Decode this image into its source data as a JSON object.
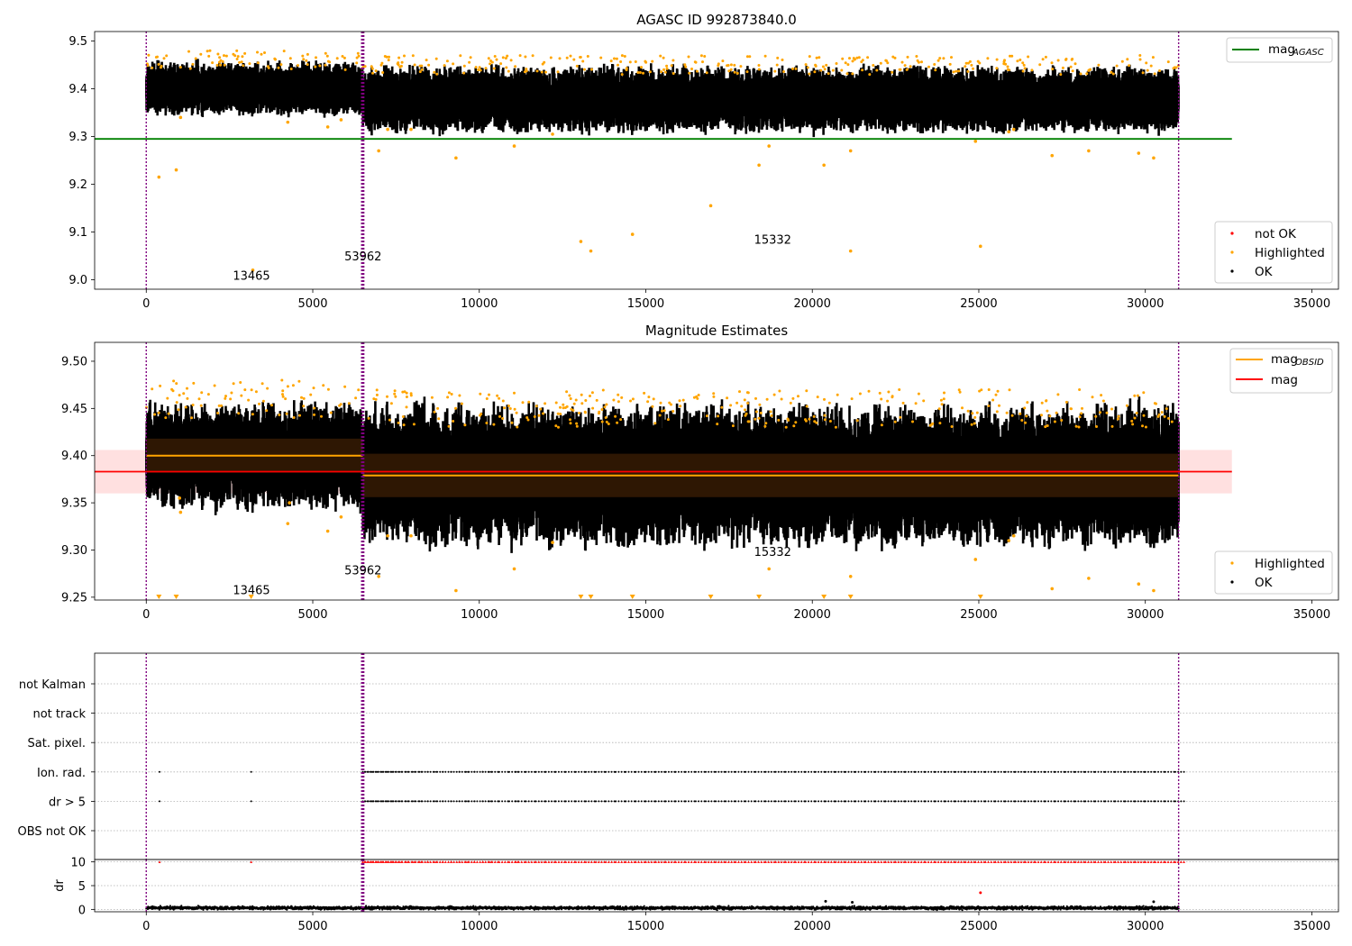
{
  "chart_data": [
    {
      "type": "scatter",
      "title": "AGASC ID 992873840.0",
      "xlim": [
        -1550,
        35800
      ],
      "ylim": [
        8.98,
        9.52
      ],
      "xticks": [
        0,
        5000,
        10000,
        15000,
        20000,
        25000,
        30000,
        35000
      ],
      "yticks": [
        9.0,
        9.1,
        9.2,
        9.3,
        9.4,
        9.5
      ],
      "ytick_labels": [
        "9.0",
        "9.1",
        "9.2",
        "9.3",
        "9.4",
        "9.5"
      ],
      "hlines": [
        {
          "name": "mag_AGASC",
          "y": 9.295,
          "x_range": [
            -1550,
            32600
          ],
          "color": "#008000"
        }
      ],
      "vlines": [
        0,
        6500,
        31000
      ],
      "obsid_blocks": [
        {
          "x_start": 0,
          "x_end": 6500,
          "center": 9.4,
          "spread": 0.012,
          "label": "13465",
          "label_x": 2600,
          "label_y": 9.0
        },
        {
          "x_start": 6500,
          "x_end": 31000,
          "center": 9.377,
          "spread": 0.015,
          "label": "53962",
          "label_x": 5950,
          "label_y": 9.04
        },
        {
          "label": "15332",
          "label_x": 18250,
          "label_y": 9.075
        }
      ],
      "highlighted_outliers": [
        {
          "x": 380,
          "y": 9.215
        },
        {
          "x": 900,
          "y": 9.23
        },
        {
          "x": 1030,
          "y": 9.34
        },
        {
          "x": 3200,
          "y": 9.02
        },
        {
          "x": 4250,
          "y": 9.33
        },
        {
          "x": 5450,
          "y": 9.32
        },
        {
          "x": 5850,
          "y": 9.335
        },
        {
          "x": 6980,
          "y": 9.27
        },
        {
          "x": 7250,
          "y": 9.315
        },
        {
          "x": 7950,
          "y": 9.315
        },
        {
          "x": 9300,
          "y": 9.255
        },
        {
          "x": 11050,
          "y": 9.28
        },
        {
          "x": 12200,
          "y": 9.305
        },
        {
          "x": 13050,
          "y": 9.08
        },
        {
          "x": 13350,
          "y": 9.06
        },
        {
          "x": 14600,
          "y": 9.095
        },
        {
          "x": 16950,
          "y": 9.155
        },
        {
          "x": 18400,
          "y": 9.24
        },
        {
          "x": 18700,
          "y": 9.28
        },
        {
          "x": 20350,
          "y": 9.24
        },
        {
          "x": 21150,
          "y": 9.27
        },
        {
          "x": 21150,
          "y": 9.06
        },
        {
          "x": 24900,
          "y": 9.29
        },
        {
          "x": 25050,
          "y": 9.07
        },
        {
          "x": 25900,
          "y": 9.31
        },
        {
          "x": 26050,
          "y": 9.315
        },
        {
          "x": 27200,
          "y": 9.26
        },
        {
          "x": 28300,
          "y": 9.27
        },
        {
          "x": 29800,
          "y": 9.265
        },
        {
          "x": 30250,
          "y": 9.255
        }
      ],
      "legends": [
        {
          "position": "upper right",
          "entries": [
            {
              "label": "mag",
              "sub": "AGASC",
              "kind": "line",
              "color": "#008000"
            }
          ]
        },
        {
          "position": "lower right",
          "entries": [
            {
              "label": "not OK",
              "kind": "marker",
              "color": "#ff0000"
            },
            {
              "label": "Highlighted",
              "kind": "marker",
              "color": "#ffa500"
            },
            {
              "label": "OK",
              "kind": "marker",
              "color": "#000000"
            }
          ]
        }
      ]
    },
    {
      "type": "scatter",
      "title": "Magnitude Estimates",
      "xlim": [
        -1550,
        35800
      ],
      "ylim": [
        9.247,
        9.52
      ],
      "xticks": [
        0,
        5000,
        10000,
        15000,
        20000,
        25000,
        30000,
        35000
      ],
      "yticks": [
        9.25,
        9.3,
        9.35,
        9.4,
        9.45,
        9.5
      ],
      "ytick_labels": [
        "9.25",
        "9.30",
        "9.35",
        "9.40",
        "9.45",
        "9.50"
      ],
      "mag": 9.383,
      "mag_band": [
        9.36,
        9.406
      ],
      "mag_obsid": [
        {
          "x_start": 0,
          "x_end": 6500,
          "y": 9.4,
          "std_band": [
            9.382,
            9.418
          ]
        },
        {
          "x_start": 6500,
          "x_end": 31000,
          "y": 9.379,
          "std_band": [
            9.356,
            9.402
          ]
        }
      ],
      "vlines": [
        0,
        6500,
        31000
      ],
      "labels": [
        {
          "text": "13465",
          "x": 2600,
          "y": 9.253
        },
        {
          "text": "53962",
          "x": 5950,
          "y": 9.274
        },
        {
          "text": "15332",
          "x": 18250,
          "y": 9.294
        }
      ],
      "clipped_low_markers": [
        380,
        900,
        3150,
        13050,
        13350,
        14600,
        16950,
        18400,
        20350,
        21150,
        25050
      ],
      "highlighted_outliers": [
        {
          "x": 1030,
          "y": 9.34
        },
        {
          "x": 1000,
          "y": 9.355
        },
        {
          "x": 4250,
          "y": 9.328
        },
        {
          "x": 4300,
          "y": 9.35
        },
        {
          "x": 5450,
          "y": 9.32
        },
        {
          "x": 5850,
          "y": 9.335
        },
        {
          "x": 6980,
          "y": 9.272
        },
        {
          "x": 7250,
          "y": 9.315
        },
        {
          "x": 7950,
          "y": 9.315
        },
        {
          "x": 9300,
          "y": 9.257
        },
        {
          "x": 11050,
          "y": 9.28
        },
        {
          "x": 12200,
          "y": 9.308
        },
        {
          "x": 18700,
          "y": 9.28
        },
        {
          "x": 21150,
          "y": 9.272
        },
        {
          "x": 24900,
          "y": 9.29
        },
        {
          "x": 25900,
          "y": 9.31
        },
        {
          "x": 26050,
          "y": 9.315
        },
        {
          "x": 27200,
          "y": 9.259
        },
        {
          "x": 28300,
          "y": 9.27
        },
        {
          "x": 29800,
          "y": 9.264
        },
        {
          "x": 30250,
          "y": 9.257
        }
      ],
      "legends": [
        {
          "position": "upper right",
          "entries": [
            {
              "label": "mag",
              "sub": "OBSID",
              "kind": "line",
              "color": "#ffa500"
            },
            {
              "label": "mag",
              "kind": "line",
              "color": "#ff0000"
            }
          ]
        },
        {
          "position": "lower right",
          "entries": [
            {
              "label": "Highlighted",
              "kind": "marker",
              "color": "#ffa500"
            },
            {
              "label": "OK",
              "kind": "marker",
              "color": "#000000"
            }
          ]
        }
      ]
    },
    {
      "type": "scatter",
      "title": "",
      "xlim": [
        -1550,
        35800
      ],
      "xticks": [
        0,
        5000,
        10000,
        15000,
        20000,
        25000,
        30000,
        35000
      ],
      "flags": [
        "not Kalman",
        "not track",
        "Sat. pixel.",
        "Ion. rad.",
        "dr > 5",
        "OBS not OK"
      ],
      "flag_hits": {
        "Ion. rad.": [
          400,
          3150,
          6500,
          6560,
          6650,
          6800,
          6950,
          7100,
          7250,
          7400,
          7600,
          7800,
          8000,
          8200,
          8450,
          8650,
          8900,
          9150,
          9400,
          9600,
          9850,
          10100,
          10300,
          10600,
          10900,
          11100,
          11400,
          11700,
          12000,
          12300,
          12600,
          12900,
          13200,
          13500,
          13800,
          14100,
          14400,
          14700,
          15000,
          15300,
          15600,
          15900,
          16200,
          16500,
          16800,
          17100,
          17400,
          17700,
          18000,
          18300,
          18600,
          18900,
          19200,
          19500,
          19800,
          20100,
          20400,
          20700,
          21000,
          21300,
          21600,
          21900,
          22200,
          22500,
          22800,
          23100,
          23400,
          23700,
          24000,
          24300,
          24600,
          24900,
          25200,
          25500,
          25800,
          26100,
          26400,
          26700,
          27000,
          27300,
          27600,
          27900,
          28200,
          28500,
          28800,
          29100,
          29400,
          29700,
          30000,
          30300,
          30600,
          30900
        ],
        "dr > 5": [
          400,
          3150,
          6500,
          6560,
          6650,
          6800,
          6950,
          7100,
          7250,
          7400,
          7600,
          7800,
          8000,
          8200,
          8450,
          8650,
          8900,
          9150,
          9400,
          9600,
          9850,
          10100,
          10300,
          10600,
          10900,
          11100,
          11400,
          11700,
          12000,
          12300,
          12600,
          12900,
          13200,
          13500,
          13800,
          14100,
          14400,
          14700,
          15000,
          15300,
          15600,
          15900,
          16200,
          16500,
          16800,
          17100,
          17400,
          17700,
          18000,
          18300,
          18600,
          18900,
          19200,
          19500,
          19800,
          20100,
          20400,
          20700,
          21000,
          21300,
          21600,
          21900,
          22200,
          22500,
          22800,
          23100,
          23400,
          23700,
          24000,
          24300,
          24600,
          24900,
          25200,
          25500,
          25800,
          26100,
          26400,
          26700,
          27000,
          27300,
          27600,
          27900,
          28200,
          28500,
          28800,
          29100,
          29400,
          29700,
          30000,
          30300,
          30600,
          30900
        ]
      },
      "dr_ylabel": "dr",
      "dr_ylim": [
        -0.5,
        10.5
      ],
      "dr_yticks": [
        0,
        5,
        10
      ],
      "dr_ytick_labels": [
        "0",
        "5",
        "10"
      ],
      "dr_typical": 0.3,
      "dr_capped_value": 10,
      "dr_outliers": [
        {
          "x": 25050,
          "y": 3.5
        },
        {
          "x": 20400,
          "y": 1.7
        },
        {
          "x": 21200,
          "y": 1.5
        },
        {
          "x": 30250,
          "y": 1.6
        }
      ],
      "vlines": [
        0,
        6500,
        31000
      ]
    }
  ],
  "colors": {
    "ok": "#000000",
    "highlighted": "#ffa500",
    "not_ok": "#ff0000",
    "vline": "#800080",
    "mag_agasc": "#008000",
    "mag": "#ff0000",
    "mag_obsid": "#ffa500"
  }
}
